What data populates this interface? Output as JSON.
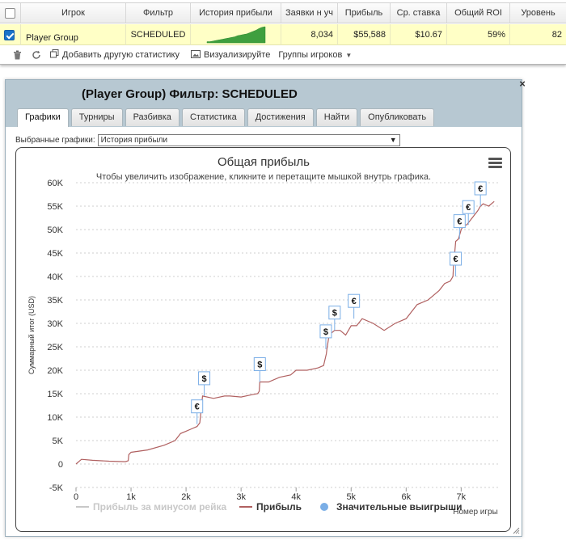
{
  "grid": {
    "headers": [
      "Игрок",
      "Фильтр",
      "История прибыли",
      "Заявки н уч",
      "Прибыль",
      "Ср. ставка",
      "Общий ROI",
      "Уровень"
    ],
    "row": {
      "player": "Player Group",
      "filter": "SCHEDULED",
      "entries": "8,034",
      "profit": "$55,588",
      "avg_stake": "$10.67",
      "roi": "59%",
      "level": "82"
    },
    "sparkline": [
      2,
      2,
      3,
      4,
      5,
      6,
      7,
      8,
      9,
      10,
      12,
      13,
      14,
      15,
      17,
      19,
      21,
      24,
      26,
      27
    ],
    "toolbar": {
      "add_stat": "Добавить другую статистику",
      "visualize": "Визуализируйте",
      "groups": "Группы игроков"
    }
  },
  "dialog": {
    "title": "(Player Group) Фильтр: SCHEDULED",
    "tabs": [
      "Графики",
      "Турниры",
      "Разбивка",
      "Статистика",
      "Достижения",
      "Найти",
      "Опубликовать"
    ],
    "active_tab": "Графики",
    "chart_select_label": "Выбранные графики:",
    "chart_select_value": "История прибыли"
  },
  "chart_data": {
    "type": "line",
    "title": "Общая прибыль",
    "subtitle": "Чтобы увеличить изображение, кликните и перетащите мышкой внутрь графика.",
    "ylabel": "Суммарный итог (USD)",
    "xlabel": "Номер игры",
    "ylim": [
      -5000,
      60000
    ],
    "xlim": [
      0,
      7700
    ],
    "yticks": [
      -5000,
      0,
      5000,
      10000,
      15000,
      20000,
      25000,
      30000,
      35000,
      40000,
      45000,
      50000,
      55000,
      60000
    ],
    "ytick_labels": [
      "-5K",
      "0",
      "5K",
      "10K",
      "15K",
      "20K",
      "25K",
      "30K",
      "35K",
      "40K",
      "45K",
      "50K",
      "55K",
      "60K"
    ],
    "xticks": [
      0,
      1000,
      2000,
      3000,
      4000,
      5000,
      6000,
      7000
    ],
    "xtick_labels": [
      "0",
      "1k",
      "2k",
      "3k",
      "4k",
      "5k",
      "6k",
      "7k"
    ],
    "grid": true,
    "series": [
      {
        "name": "Прибыль",
        "color": "#b06060",
        "x": [
          0,
          50,
          100,
          300,
          600,
          900,
          950,
          960,
          1000,
          1300,
          1600,
          1800,
          1900,
          2000,
          2100,
          2200,
          2250,
          2300,
          2500,
          2700,
          2800,
          3000,
          3200,
          3300,
          3330,
          3340,
          3500,
          3700,
          3900,
          4000,
          4200,
          4400,
          4500,
          4550,
          4560,
          4600,
          4650,
          4700,
          4800,
          4900,
          5000,
          5100,
          5200,
          5400,
          5600,
          5800,
          6000,
          6200,
          6400,
          6500,
          6600,
          6700,
          6800,
          6850,
          6860,
          6900,
          6950,
          7000,
          7050,
          7100,
          7200,
          7300,
          7350,
          7400,
          7500,
          7600
        ],
        "y": [
          0,
          500,
          1000,
          800,
          600,
          500,
          700,
          2000,
          2500,
          3000,
          4000,
          5000,
          6500,
          7000,
          7500,
          8000,
          8800,
          14500,
          14000,
          14500,
          14500,
          14300,
          14800,
          15000,
          15500,
          17500,
          17500,
          18500,
          19000,
          20000,
          20000,
          20500,
          21000,
          23500,
          24500,
          27500,
          28000,
          28500,
          28500,
          27500,
          29500,
          29500,
          31000,
          30000,
          28500,
          30000,
          31000,
          34000,
          35000,
          36000,
          37000,
          38500,
          39000,
          40000,
          42000,
          47500,
          48000,
          50000,
          51000,
          51000,
          52500,
          54000,
          55000,
          55500,
          55000,
          56000
        ]
      },
      {
        "name": "Прибыль за минусом рейка",
        "color": "#c8c8c8",
        "x": [],
        "y": []
      }
    ],
    "markers": [
      {
        "label": "€",
        "x": 2200,
        "y": 8500
      },
      {
        "label": "$",
        "x": 2330,
        "y": 14500
      },
      {
        "label": "$",
        "x": 3340,
        "y": 17500
      },
      {
        "label": "$",
        "x": 4540,
        "y": 24500
      },
      {
        "label": "$",
        "x": 4700,
        "y": 28500
      },
      {
        "label": "€",
        "x": 5050,
        "y": 31000
      },
      {
        "label": "€",
        "x": 6900,
        "y": 40000
      },
      {
        "label": "€",
        "x": 6970,
        "y": 48000
      },
      {
        "label": "€",
        "x": 7130,
        "y": 51000
      },
      {
        "label": "€",
        "x": 7350,
        "y": 55000
      }
    ],
    "legend": [
      {
        "label": "Прибыль за минусом рейка",
        "color": "#c8c8c8",
        "kind": "line"
      },
      {
        "label": "Прибыль",
        "color": "#b06060",
        "kind": "line"
      },
      {
        "label": "Значительные выигрыши",
        "color": "#7aaee6",
        "kind": "dot"
      }
    ],
    "legend_position": "bottom"
  }
}
